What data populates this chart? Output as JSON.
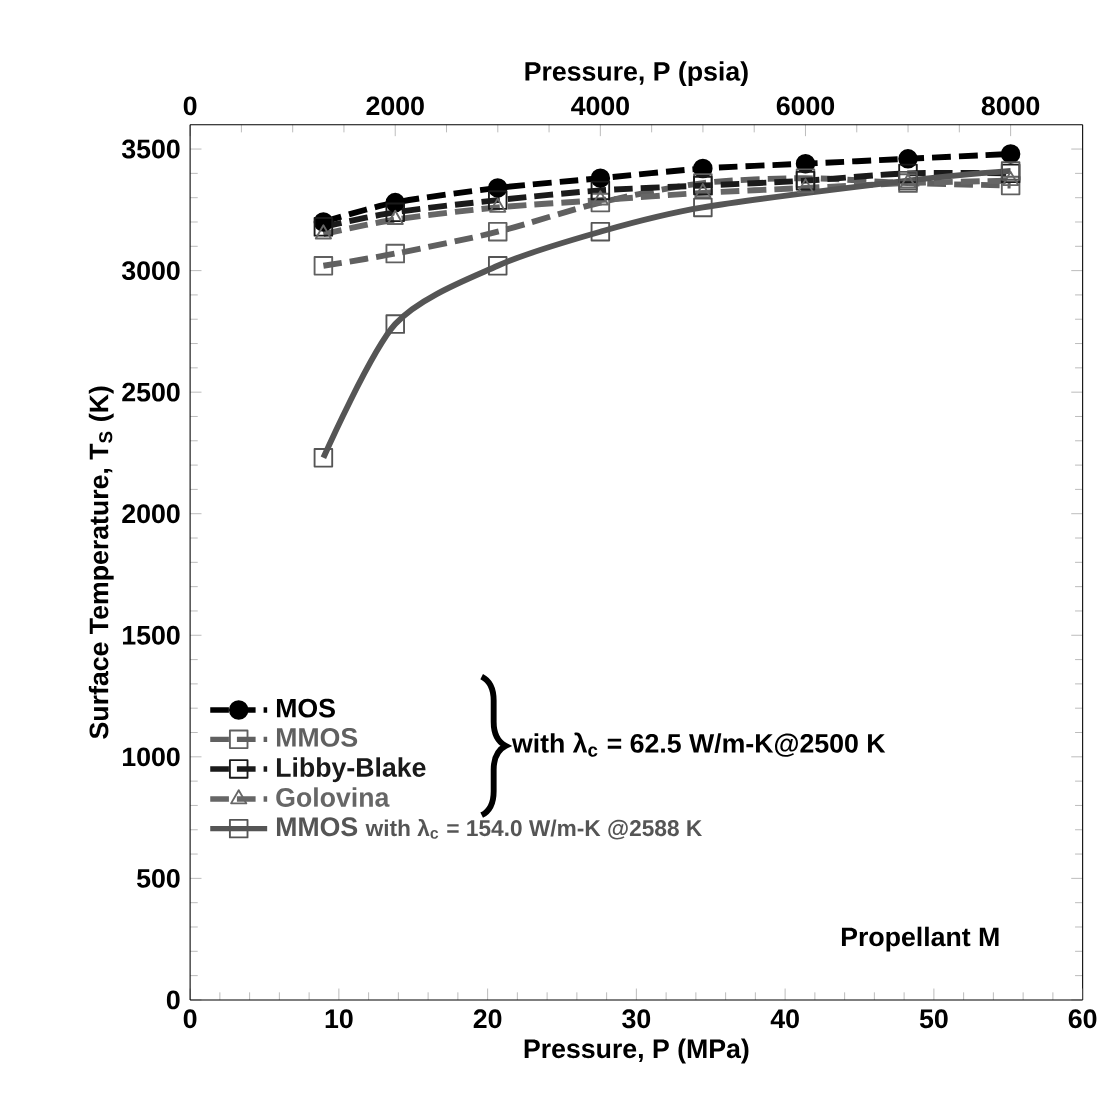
{
  "chart_data": {
    "type": "line",
    "xlabel": "Pressure, P (MPa)",
    "x2label": "Pressure, P (psia)",
    "ylabel": "Surface Temperature, T$_{S}$ (K)",
    "xlim": [
      0,
      60
    ],
    "xticks": [
      0,
      10,
      20,
      30,
      40,
      50,
      60
    ],
    "x2lim": [
      0,
      8702.3
    ],
    "x2ticks": [
      0,
      2000,
      4000,
      6000,
      8000
    ],
    "ylim": [
      0,
      3600
    ],
    "yticks": [
      0,
      500,
      1000,
      1500,
      2000,
      2500,
      3000,
      3500
    ],
    "legend": "bottom left",
    "grid": false,
    "series": [
      {
        "name": "MOS",
        "color": "#000000",
        "marker": "circle",
        "line_style": "dashed",
        "x": [
          8.96,
          13.79,
          20.68,
          27.58,
          34.47,
          41.37,
          48.26,
          55.16
        ],
        "values": [
          3200,
          3280,
          3340,
          3380,
          3420,
          3440,
          3460,
          3480
        ]
      },
      {
        "name": "MMOS",
        "color": "#606060",
        "marker": "square",
        "line_style": "dashed",
        "x": [
          8.96,
          13.79,
          20.68,
          27.58,
          34.47,
          41.37,
          48.26,
          55.16
        ],
        "values": [
          3020,
          3070,
          3160,
          3280,
          3360,
          3380,
          3360,
          3350
        ]
      },
      {
        "name": "Libby-Blake",
        "color": "#1a1a1a",
        "marker": "square",
        "line_style": "dashed",
        "x": [
          8.96,
          13.79,
          20.68,
          27.58,
          34.47,
          41.37,
          48.26,
          55.16
        ],
        "values": [
          3180,
          3240,
          3290,
          3330,
          3350,
          3370,
          3400,
          3400
        ]
      },
      {
        "name": "Golovina",
        "color": "#666666",
        "marker": "triangle",
        "line_style": "dashed",
        "x": [
          8.96,
          13.79,
          20.68,
          27.58,
          34.47,
          41.37,
          48.26,
          55.16
        ],
        "values": [
          3150,
          3210,
          3260,
          3290,
          3320,
          3340,
          3360,
          3370
        ]
      },
      {
        "name": "MMOS",
        "color": "#555555",
        "marker": "square",
        "line_style": "solid",
        "x": [
          8.96,
          13.79,
          20.68,
          27.58,
          34.47,
          48.26,
          55.16
        ],
        "values": [
          2230,
          2780,
          3020,
          3160,
          3260,
          3370,
          3410
        ]
      }
    ],
    "annotations": [
      "with λ$_{c}$ = 62.5 W/m-K@2500 K",
      "with λ$_{c}$ = 154.0 W/m-K @2588 K",
      "Propellant M"
    ]
  }
}
